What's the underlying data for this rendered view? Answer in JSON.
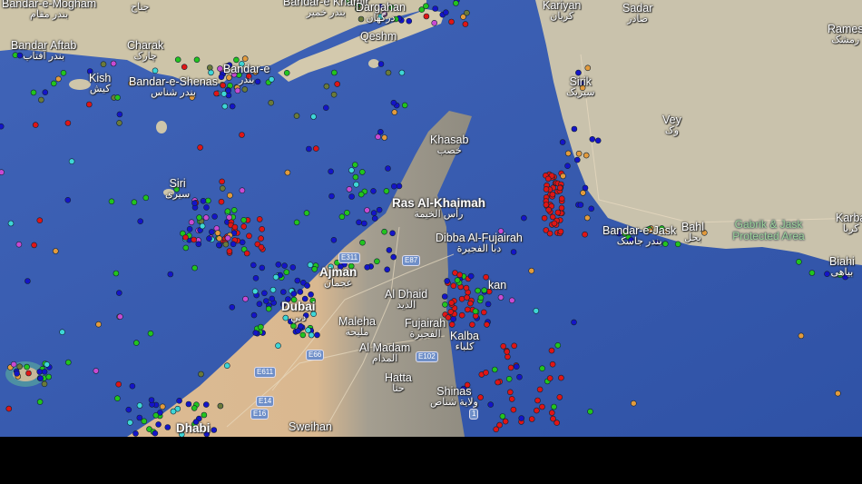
{
  "map": {
    "colors": {
      "water": "#3c5fb6",
      "land_iran": "#cfc6ad",
      "land_uae_desert": "#dcb991",
      "land_mountain": "#9c978a"
    },
    "ship_legend_colors": {
      "cargo": "#22c41e",
      "tanker": "#e01515",
      "passenger": "#1414c8",
      "tug_special": "#3ed6d6",
      "fishing": "#e39b3c",
      "pleasure": "#c84ad2",
      "unknown": "#6b7a3a"
    },
    "places": [
      {
        "name": "Bandar-e-Mogham",
        "native": "بندر مقام"
      },
      {
        "name": "",
        "native": "جناح"
      },
      {
        "name": "Bandar-e Khamir",
        "native": "بندر خمیر"
      },
      {
        "name": "Dargahan",
        "native": "درگهان"
      },
      {
        "name": "Qeshm",
        "native": ""
      },
      {
        "name": "Bandar Aftab",
        "native": "بندر آفتاب"
      },
      {
        "name": "Charak",
        "native": "چارک"
      },
      {
        "name": "Kish",
        "native": "کیش"
      },
      {
        "name": "Bandar-e-Shenas",
        "native": "بندر شناس"
      },
      {
        "name": "Bandar-e",
        "native": "بندر"
      },
      {
        "name": "Kariyan",
        "native": "کریان"
      },
      {
        "name": "Sadar",
        "native": "صادر"
      },
      {
        "name": "Rames",
        "native": "رمشک"
      },
      {
        "name": "Sirik",
        "native": "سیریک"
      },
      {
        "name": "Vey",
        "native": "وک"
      },
      {
        "name": "Khasab",
        "native": "خصب"
      },
      {
        "name": "Siri",
        "native": "سیری"
      },
      {
        "name": "Ras Al-Khaimah",
        "native": "رأس الخيمة"
      },
      {
        "name": "Dibba Al-Fujairah",
        "native": "دبا الفجيرة"
      },
      {
        "name": "Ajman",
        "native": "عجمان"
      },
      {
        "name": "Al Dhaid",
        "native": "الذيد"
      },
      {
        "name": "kan",
        "native": ""
      },
      {
        "name": "Dubai",
        "native": "دبي"
      },
      {
        "name": "Maleha",
        "native": "مليحة"
      },
      {
        "name": "Fujairah",
        "native": "الفجيرة"
      },
      {
        "name": "Al Madam",
        "native": "المدام"
      },
      {
        "name": "Kalba",
        "native": "كلباء"
      },
      {
        "name": "Hatta",
        "native": "حتا"
      },
      {
        "name": "Shinas",
        "native": "ولاية شناص"
      },
      {
        "name": "Dhabi",
        "native": ""
      },
      {
        "name": "Sweihan",
        "native": ""
      },
      {
        "name": "Bandar-e-Jask",
        "native": "بندر جاسک"
      },
      {
        "name": "Bahl",
        "native": "بحل"
      },
      {
        "name": "Karba",
        "native": "کربا"
      },
      {
        "name": "Biahi",
        "native": "بیاهی"
      }
    ],
    "protected_area": "Gabrik & Jask Protected Area",
    "road_shields": [
      "E311",
      "E87",
      "E66",
      "E611",
      "E102",
      "E16",
      "E14",
      "1"
    ]
  }
}
